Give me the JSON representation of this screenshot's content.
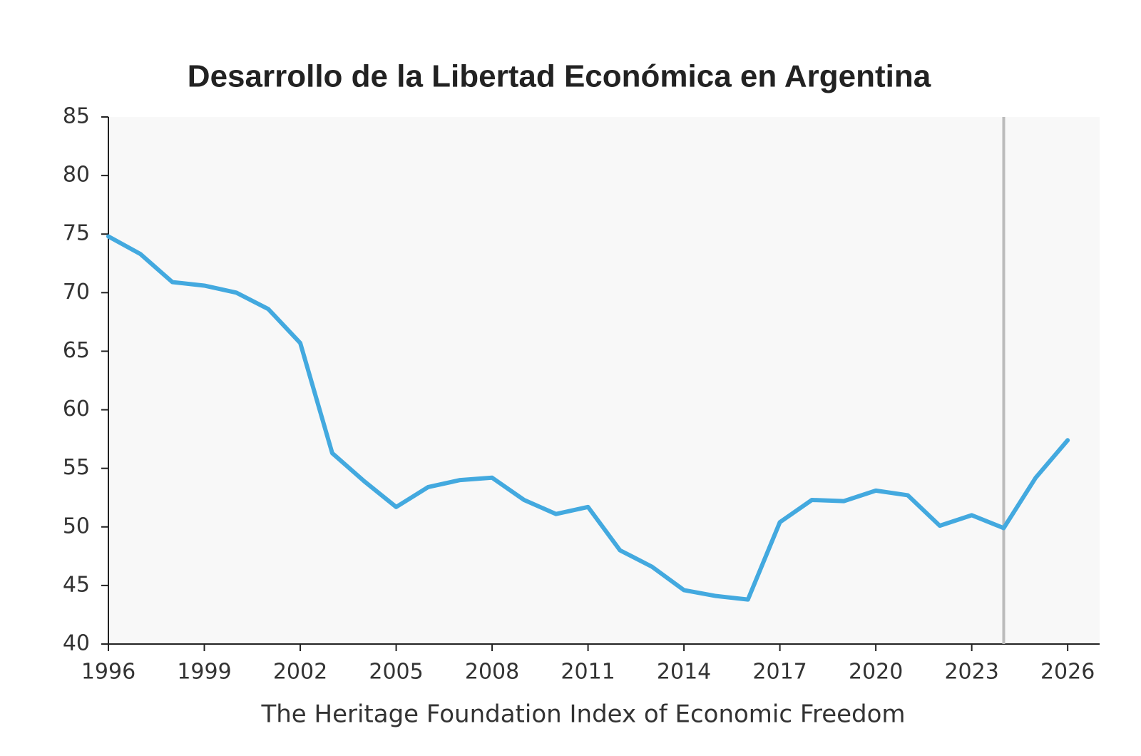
{
  "chart_data": {
    "type": "line",
    "title": "Desarrollo de la Libertad Económica en Argentina",
    "x_label": "The Heritage Foundation Index of Economic Freedom",
    "x": [
      1996,
      1997,
      1998,
      1999,
      2000,
      2001,
      2002,
      2003,
      2004,
      2005,
      2006,
      2007,
      2008,
      2009,
      2010,
      2011,
      2012,
      2013,
      2014,
      2015,
      2016,
      2017,
      2018,
      2019,
      2020,
      2021,
      2022,
      2023,
      2024,
      2025,
      2026
    ],
    "series": [
      {
        "name": "Argentina",
        "color": "#43a9df",
        "values": [
          74.8,
          73.3,
          70.9,
          70.6,
          70.0,
          68.6,
          65.7,
          56.3,
          53.9,
          51.7,
          53.4,
          54.0,
          54.2,
          52.3,
          51.1,
          51.7,
          48.0,
          46.6,
          44.6,
          44.1,
          43.8,
          50.4,
          52.3,
          52.2,
          53.1,
          52.7,
          50.1,
          51.0,
          49.9,
          54.2,
          57.4
        ]
      }
    ],
    "xlim": [
      1996,
      2027
    ],
    "xticks": [
      1996,
      1999,
      2002,
      2005,
      2008,
      2011,
      2014,
      2017,
      2020,
      2023,
      2026
    ],
    "ylim": [
      40,
      85
    ],
    "yticks": [
      40,
      45,
      50,
      55,
      60,
      65,
      70,
      75,
      80,
      85
    ],
    "vline": {
      "x": 2024,
      "color": "#bbbbbb"
    },
    "plot_background": "#f8f8f8"
  }
}
